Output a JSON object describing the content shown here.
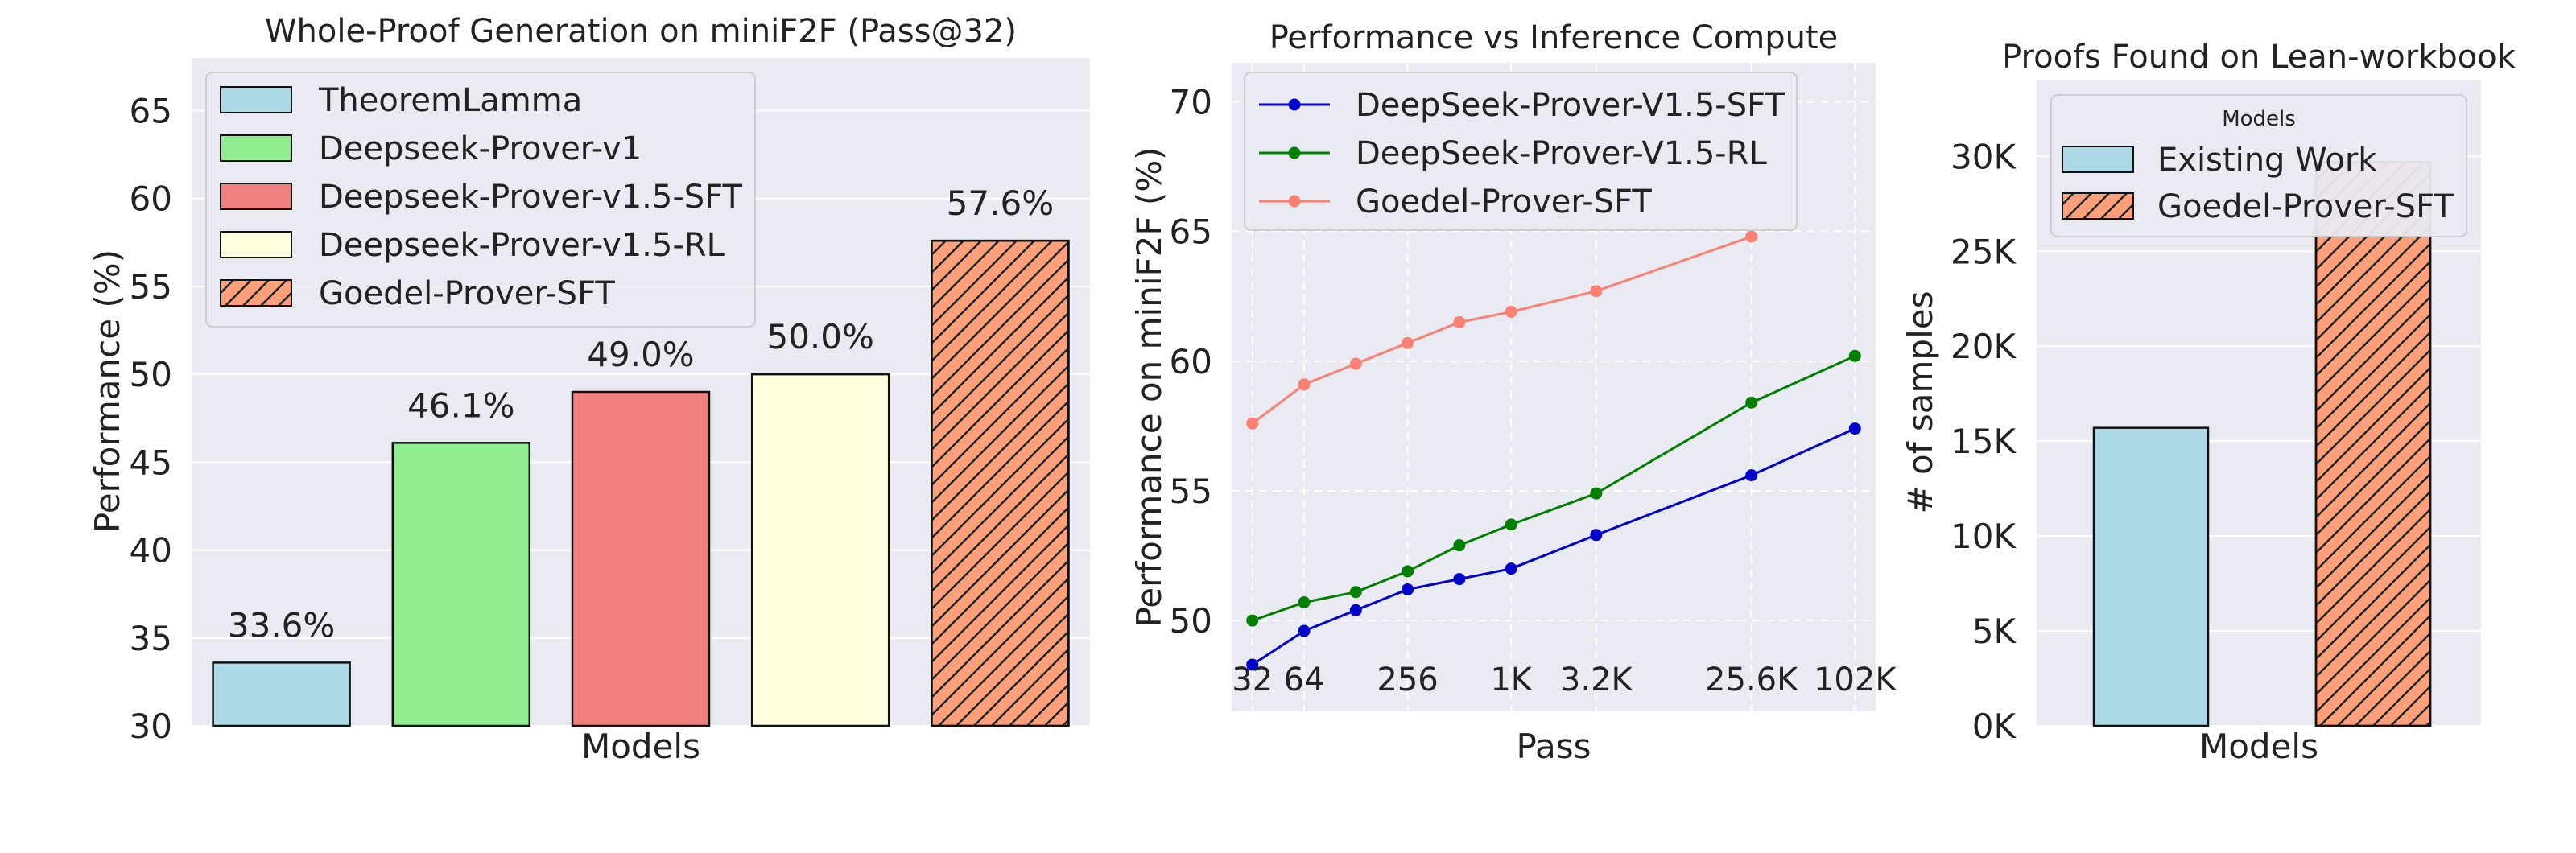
{
  "chart_data": [
    {
      "type": "bar",
      "title": "Whole-Proof Generation on miniF2F (Pass@32)",
      "xlabel": "Models",
      "ylabel": "Performance (%)",
      "ylim": [
        30,
        68
      ],
      "yticks": [
        30,
        35,
        40,
        45,
        50,
        55,
        60,
        65
      ],
      "grid": true,
      "legend_position": "top-left",
      "categories": [
        "TheoremLamma",
        "Deepseek-Prover-v1",
        "Deepseek-Prover-v1.5-SFT",
        "Deepseek-Prover-v1.5-RL",
        "Goedel-Prover-SFT"
      ],
      "values": [
        33.6,
        46.1,
        49.0,
        50.0,
        57.6
      ],
      "value_labels": [
        "33.6%",
        "46.1%",
        "49.0%",
        "50.0%",
        "57.6%"
      ],
      "colors": [
        "#add8e6",
        "#90ee90",
        "#f08080",
        "#ffffe0",
        "#ffa07a"
      ],
      "hatched": [
        false,
        false,
        false,
        false,
        true
      ]
    },
    {
      "type": "line",
      "title": "Performance vs Inference Compute",
      "xlabel": "Pass",
      "ylabel": "Performance on miniF2F (%)",
      "xscale": "log2",
      "ylim": [
        46.5,
        71.5
      ],
      "yticks": [
        50,
        55,
        60,
        65,
        70
      ],
      "xtick_values": [
        32,
        64,
        256,
        1024,
        3200,
        25600,
        102400
      ],
      "xtick_labels": [
        "32",
        "64",
        "256",
        "1K",
        "3.2K",
        "25.6K",
        "102K"
      ],
      "grid": true,
      "legend_position": "top-left",
      "series": [
        {
          "name": "DeepSeek-Prover-V1.5-SFT",
          "color": "#0000cc",
          "x": [
            32,
            64,
            128,
            256,
            512,
            1024,
            3200,
            25600,
            102400
          ],
          "y": [
            48.3,
            49.6,
            50.4,
            51.2,
            51.6,
            52.0,
            53.3,
            55.6,
            57.4
          ]
        },
        {
          "name": "DeepSeek-Prover-V1.5-RL",
          "color": "#008000",
          "x": [
            32,
            64,
            128,
            256,
            512,
            1024,
            3200,
            25600,
            102400
          ],
          "y": [
            50.0,
            50.7,
            51.1,
            51.9,
            52.9,
            53.7,
            54.9,
            58.4,
            60.2
          ]
        },
        {
          "name": "Goedel-Prover-SFT",
          "color": "#fa8072",
          "x": [
            32,
            64,
            128,
            256,
            512,
            1024,
            3200,
            25600
          ],
          "y": [
            57.6,
            59.1,
            59.9,
            60.7,
            61.5,
            61.9,
            62.7,
            64.8
          ]
        }
      ]
    },
    {
      "type": "bar",
      "title": "Proofs Found on Lean-workbook",
      "xlabel": "Models",
      "ylabel": "# of samples",
      "ylim": [
        0,
        34000
      ],
      "yticks": [
        0,
        5000,
        10000,
        15000,
        20000,
        25000,
        30000
      ],
      "ytick_labels": [
        "0K",
        "5K",
        "10K",
        "15K",
        "20K",
        "25K",
        "30K"
      ],
      "grid": true,
      "legend_title": "Models",
      "legend_position": "top",
      "categories": [
        "Existing Work",
        "Goedel-Prover-SFT"
      ],
      "values": [
        15700,
        29700
      ],
      "colors": [
        "#add8e6",
        "#ffa07a"
      ],
      "hatched": [
        false,
        true
      ]
    }
  ]
}
